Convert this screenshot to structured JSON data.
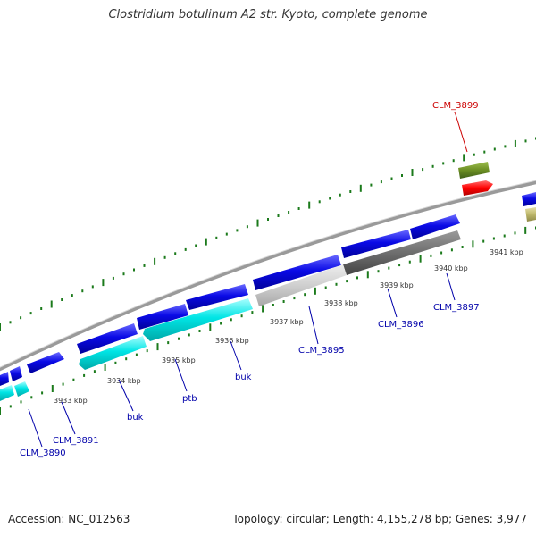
{
  "title": "Clostridium botulinum A2 str. Kyoto, complete genome",
  "footer": {
    "accession": "Accession: NC_012563",
    "summary": "Topology: circular; Length: 4,155,278 bp; Genes: 3,977"
  },
  "colors": {
    "forward_gene": "#0a0ae6",
    "reverse_gene": "#00e5e5",
    "highlight_gene": "#ff0000",
    "olive_gene": "#6b8e23",
    "grey_region": "#6e6e6e",
    "light_region": "#cfcfcf",
    "backbone": "#8a8a8a",
    "tick": "#1b7a1b",
    "label_blue": "#0000aa",
    "label_red": "#cc0000"
  },
  "scale_labels": [
    "3933 kbp",
    "3934 kbp",
    "3935 kbp",
    "3936 kbp",
    "3937 kbp",
    "3938 kbp",
    "3939 kbp",
    "3940 kbp",
    "3941 kbp"
  ],
  "gene_labels": [
    {
      "text": "CLM_3899",
      "color": "red"
    },
    {
      "text": "CLM_3897",
      "color": "blue"
    },
    {
      "text": "CLM_3896",
      "color": "blue"
    },
    {
      "text": "CLM_3895",
      "color": "blue"
    },
    {
      "text": "buk",
      "color": "blue"
    },
    {
      "text": "ptb",
      "color": "blue"
    },
    {
      "text": "buk",
      "color": "blue"
    },
    {
      "text": "CLM_3891",
      "color": "blue"
    },
    {
      "text": "CLM_3890",
      "color": "blue"
    }
  ]
}
